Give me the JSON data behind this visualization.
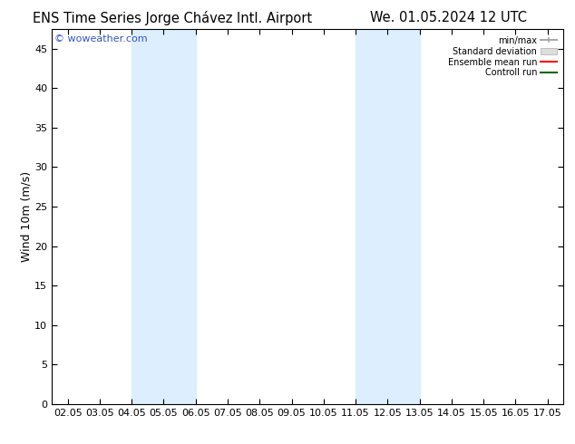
{
  "title_left": "ENS Time Series Jorge Chávez Intl. Airport",
  "title_right": "We. 01.05.2024 12 UTC",
  "ylabel": "Wind 10m (m/s)",
  "watermark": "© woweather.com",
  "xlim": [
    1.5,
    17.5
  ],
  "ylim": [
    0,
    47.5
  ],
  "yticks": [
    0,
    5,
    10,
    15,
    20,
    25,
    30,
    35,
    40,
    45
  ],
  "xtick_labels": [
    "02.05",
    "03.05",
    "04.05",
    "05.05",
    "06.05",
    "07.05",
    "08.05",
    "09.05",
    "10.05",
    "11.05",
    "12.05",
    "13.05",
    "14.05",
    "15.05",
    "16.05",
    "17.05"
  ],
  "xtick_positions": [
    2,
    3,
    4,
    5,
    6,
    7,
    8,
    9,
    10,
    11,
    12,
    13,
    14,
    15,
    16,
    17
  ],
  "shaded_regions": [
    {
      "xmin": 4.0,
      "xmax": 6.0,
      "color": "#ddeeff"
    },
    {
      "xmin": 11.0,
      "xmax": 13.0,
      "color": "#ddeeff"
    }
  ],
  "legend_entries": [
    {
      "label": "min/max",
      "color": "#999999",
      "style": "minmax"
    },
    {
      "label": "Standard deviation",
      "color": "#cccccc",
      "style": "stddev"
    },
    {
      "label": "Ensemble mean run",
      "color": "#ff0000",
      "style": "line"
    },
    {
      "label": "Controll run",
      "color": "#006600",
      "style": "line"
    }
  ],
  "bg_color": "#ffffff",
  "plot_bg_color": "#ffffff",
  "border_color": "#000000",
  "title_fontsize": 10.5,
  "tick_fontsize": 8,
  "ylabel_fontsize": 9,
  "watermark_color": "#3355cc",
  "watermark_fontsize": 8,
  "shaded_color": "#ddeeff"
}
